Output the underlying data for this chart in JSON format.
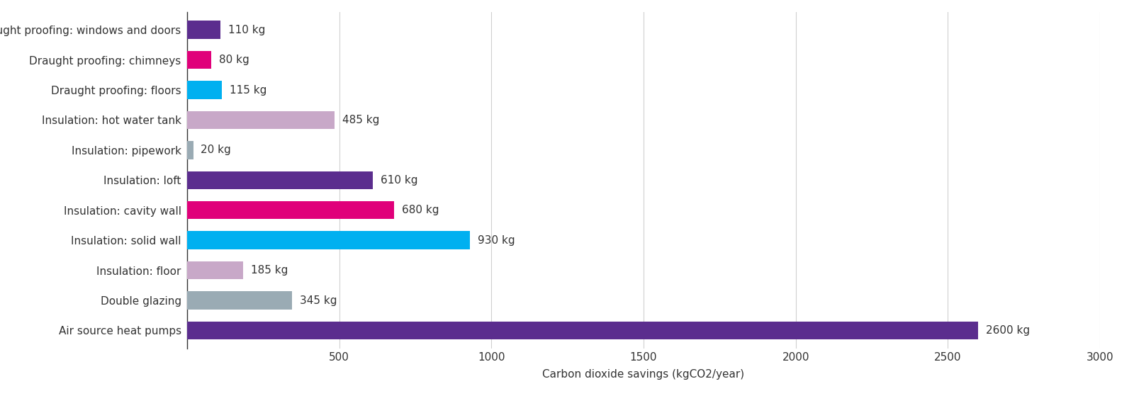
{
  "categories": [
    "Draught proofing: windows and doors",
    "Draught proofing: chimneys",
    "Draught proofing: floors",
    "Insulation: hot water tank",
    "Insulation: pipework",
    "Insulation: loft",
    "Insulation: cavity wall",
    "Insulation: solid wall",
    "Insulation: floor",
    "Double glazing",
    "Air source heat pumps"
  ],
  "values": [
    110,
    80,
    115,
    485,
    20,
    610,
    680,
    930,
    185,
    345,
    2600
  ],
  "colors": [
    "#5b2d8e",
    "#e0007a",
    "#00b0f0",
    "#c8a8c8",
    "#9aabb4",
    "#5b2d8e",
    "#e0007a",
    "#00b0f0",
    "#c8a8c8",
    "#9aabb4",
    "#5b2d8e"
  ],
  "labels": [
    "110 kg",
    "80 kg",
    "115 kg",
    "485 kg",
    "20 kg",
    "610 kg",
    "680 kg",
    "930 kg",
    "185 kg",
    "345 kg",
    "2600 kg"
  ],
  "xlabel": "Carbon dioxide savings (kgCO2/year)",
  "xlim": [
    0,
    3000
  ],
  "xticks": [
    0,
    500,
    1000,
    1500,
    2000,
    2500,
    3000
  ],
  "background_color": "#ffffff",
  "grid_color": "#d0d0d0",
  "bar_height": 0.6,
  "label_fontsize": 11,
  "tick_fontsize": 11,
  "xlabel_fontsize": 11
}
